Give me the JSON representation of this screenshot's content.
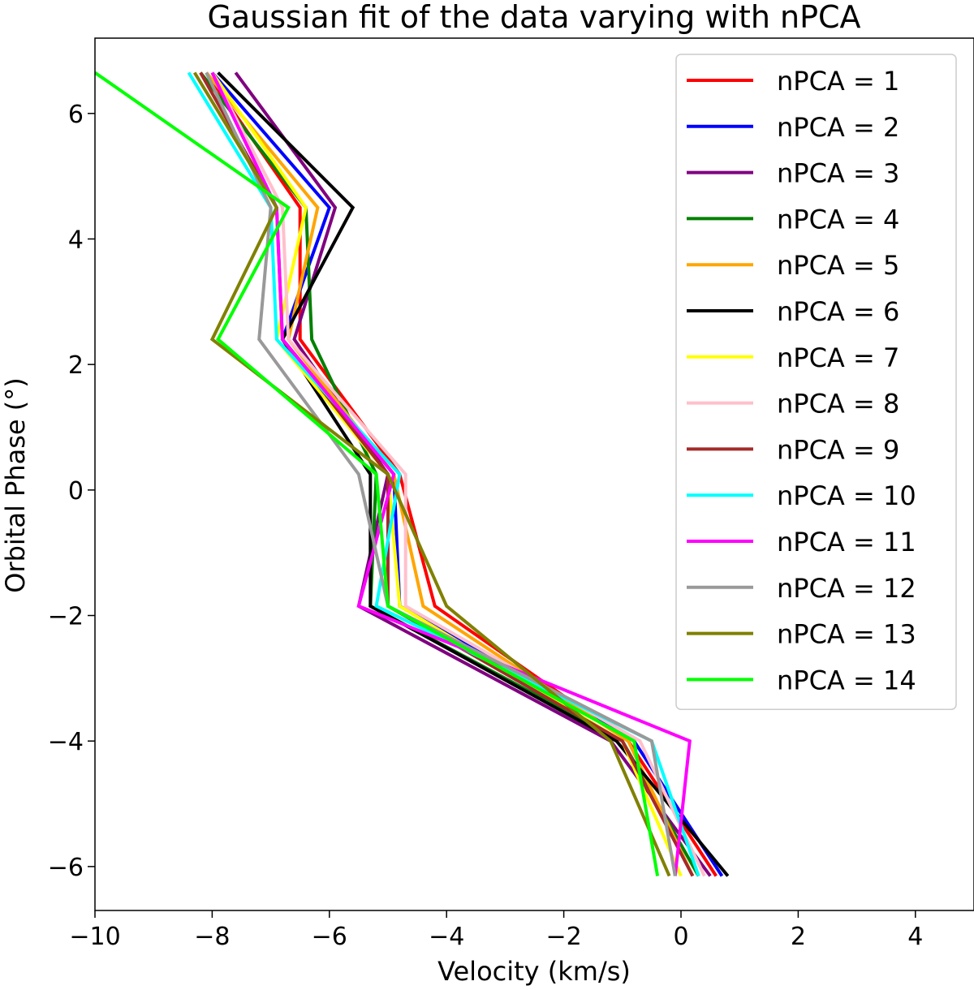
{
  "chart_data": {
    "type": "line",
    "title": "Gaussian fit of the data varying with nPCA",
    "xlabel": "Velocity (km/s)",
    "ylabel": "Orbital Phase (°)",
    "xlim": [
      -10,
      5
    ],
    "ylim": [
      -6.7,
      7.2
    ],
    "xticks": [
      -10,
      -8,
      -6,
      -4,
      -2,
      0,
      2,
      4
    ],
    "xtick_labels": [
      "−10",
      "−8",
      "−6",
      "−4",
      "−2",
      "0",
      "2",
      "4"
    ],
    "yticks": [
      -6,
      -4,
      -2,
      0,
      2,
      4,
      6
    ],
    "ytick_labels": [
      "−6",
      "−4",
      "−2",
      "0",
      "2",
      "4",
      "6"
    ],
    "legend_location": "top-right",
    "y": [
      6.65,
      4.5,
      2.4,
      0.25,
      -1.85,
      -4.0,
      -6.15
    ],
    "series": [
      {
        "name": "nPCA = 1",
        "color": "#ff0000",
        "values": [
          -8.1,
          -6.5,
          -6.5,
          -4.8,
          -4.2,
          -0.9,
          0.6
        ]
      },
      {
        "name": "nPCA = 2",
        "color": "#0000ff",
        "values": [
          -8.0,
          -6.0,
          -6.8,
          -4.9,
          -4.8,
          -0.8,
          0.7
        ]
      },
      {
        "name": "nPCA = 3",
        "color": "#800080",
        "values": [
          -7.6,
          -5.9,
          -6.6,
          -5.0,
          -5.5,
          -1.2,
          0.5
        ]
      },
      {
        "name": "nPCA = 4",
        "color": "#008000",
        "values": [
          -8.2,
          -6.4,
          -6.3,
          -5.2,
          -5.3,
          -1.0,
          0.3
        ]
      },
      {
        "name": "nPCA = 5",
        "color": "#ffa500",
        "values": [
          -8.1,
          -6.2,
          -6.7,
          -4.9,
          -4.4,
          -0.9,
          0.2
        ]
      },
      {
        "name": "nPCA = 6",
        "color": "#000000",
        "values": [
          -7.9,
          -5.6,
          -6.8,
          -5.3,
          -5.3,
          -1.1,
          0.8
        ]
      },
      {
        "name": "nPCA = 7",
        "color": "#ffff00",
        "values": [
          -8.0,
          -6.4,
          -6.9,
          -5.0,
          -4.8,
          -1.0,
          0.0
        ]
      },
      {
        "name": "nPCA = 8",
        "color": "#ffc0cb",
        "values": [
          -8.0,
          -6.8,
          -6.7,
          -4.7,
          -4.7,
          -0.7,
          0.4
        ]
      },
      {
        "name": "nPCA = 9",
        "color": "#a52a2a",
        "values": [
          -8.2,
          -6.9,
          -6.8,
          -5.0,
          -5.0,
          -1.0,
          0.2
        ]
      },
      {
        "name": "nPCA = 10",
        "color": "#00ffff",
        "values": [
          -8.4,
          -7.0,
          -6.9,
          -4.8,
          -5.2,
          -0.5,
          0.3
        ]
      },
      {
        "name": "nPCA = 11",
        "color": "#ff00ff",
        "values": [
          -8.0,
          -6.9,
          -6.8,
          -4.9,
          -5.5,
          0.15,
          -0.1
        ]
      },
      {
        "name": "nPCA = 12",
        "color": "#999999",
        "values": [
          -8.1,
          -7.0,
          -7.2,
          -5.5,
          -5.0,
          -0.5,
          -0.1
        ]
      },
      {
        "name": "nPCA = 13",
        "color": "#808000",
        "values": [
          -8.3,
          -6.9,
          -8.0,
          -5.0,
          -4.0,
          -1.2,
          -0.2
        ]
      },
      {
        "name": "nPCA = 14",
        "color": "#00ff00",
        "values": [
          -10.0,
          -6.7,
          -7.9,
          -5.2,
          -5.0,
          -0.8,
          -0.4
        ]
      }
    ]
  }
}
